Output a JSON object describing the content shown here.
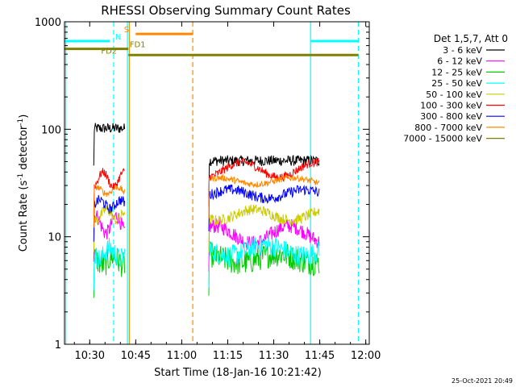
{
  "chart_data": {
    "type": "line",
    "title": "RHESSI Observing Summary Count Rates",
    "xlabel": "Start Time (18-Jan-16 10:21:42)",
    "ylabel_main": "Count Rate (s",
    "ylabel_sup1": "-1",
    "ylabel_mid": " detector",
    "ylabel_sup2": "-1",
    "ylabel_end": ")",
    "timestamp": "25-Oct-2021 20:49",
    "y_scale": "log",
    "ylim": [
      1,
      1000
    ],
    "xlim": [
      10.363,
      12.019
    ],
    "x_ticks": [
      {
        "value": 10.5,
        "label": "10:30"
      },
      {
        "value": 10.75,
        "label": "10:45"
      },
      {
        "value": 11.0,
        "label": "11:00"
      },
      {
        "value": 11.25,
        "label": "11:15"
      },
      {
        "value": 11.5,
        "label": "11:30"
      },
      {
        "value": 11.75,
        "label": "11:45"
      },
      {
        "value": 12.0,
        "label": "12:00"
      }
    ],
    "y_ticks": [
      {
        "value": 1,
        "label": "1"
      },
      {
        "value": 10,
        "label": "10"
      },
      {
        "value": 100,
        "label": "100"
      },
      {
        "value": 1000,
        "label": "1000"
      }
    ],
    "legend_header": "Det 1,5,7, Att 0",
    "legend_position": "right",
    "series": [
      {
        "name": "3 - 6 keV",
        "color": "#000000",
        "seg1": 102,
        "seg2": 51,
        "amp": 0.05,
        "bump": 0.0
      },
      {
        "name": "6 - 12 keV",
        "color": "#ff00ff",
        "seg1": 13,
        "seg2": 10.5,
        "amp": 0.07,
        "bump": 0.08
      },
      {
        "name": "12 - 25 keV",
        "color": "#00cc00",
        "seg1": 6,
        "seg2": 6.3,
        "amp": 0.12,
        "bump": 0.04
      },
      {
        "name": "25 - 50 keV",
        "color": "#00ffff",
        "seg1": 7,
        "seg2": 7.5,
        "amp": 0.1,
        "bump": 0.05
      },
      {
        "name": "50 - 100 keV",
        "color": "#cccc00",
        "seg1": 16,
        "seg2": 16,
        "amp": 0.05,
        "bump": 0.05
      },
      {
        "name": "100 - 300 keV",
        "color": "#ff0000",
        "seg1": 34,
        "seg2": 42,
        "amp": 0.04,
        "bump": 0.07
      },
      {
        "name": "300 - 800 keV",
        "color": "#0000ff",
        "seg1": 20,
        "seg2": 25,
        "amp": 0.05,
        "bump": 0.04
      },
      {
        "name": "800 - 7000 keV",
        "color": "#ff8800",
        "seg1": 27,
        "seg2": 33,
        "amp": 0.03,
        "bump": 0.03
      },
      {
        "name": "7000 - 15000 keV",
        "color": "#808000",
        "seg1": 0,
        "seg2": 0,
        "amp": 0.0,
        "bump": 0.0
      }
    ],
    "intervals": [
      {
        "start": 10.522,
        "end": 10.69
      },
      {
        "start": 11.147,
        "end": 11.747
      }
    ],
    "flags": [
      {
        "label": "S",
        "color": "#ff8800",
        "y": 770,
        "segments": [
          [
            10.75,
            11.06
          ]
        ],
        "label_x": 10.7
      },
      {
        "label": "N",
        "color": "#00ffff",
        "y": 660,
        "segments": [
          [
            10.363,
            10.61
          ],
          [
            11.7,
            11.96
          ]
        ],
        "label_x": 10.655
      },
      {
        "label": "FD1",
        "color": "#808000",
        "y": 560,
        "segments": [
          [
            10.363,
            10.71
          ]
        ],
        "label_x": 10.76
      },
      {
        "label": "FD2",
        "color": "#808000",
        "y": 490,
        "segments": [
          [
            10.71,
            11.96
          ]
        ],
        "label_x": 10.605
      }
    ],
    "vlines": [
      {
        "x": 10.37,
        "color": "#00ffff",
        "style": "solid"
      },
      {
        "x": 10.63,
        "color": "#00ffff",
        "style": "dashed"
      },
      {
        "x": 10.705,
        "color": "#00ffff",
        "style": "solid"
      },
      {
        "x": 10.715,
        "color": "#ff8800",
        "style": "solid"
      },
      {
        "x": 11.06,
        "color": "#ff8800",
        "style": "dashed"
      },
      {
        "x": 11.7,
        "color": "#00ffff",
        "style": "solid"
      },
      {
        "x": 11.96,
        "color": "#00ffff",
        "style": "dashed"
      }
    ]
  }
}
